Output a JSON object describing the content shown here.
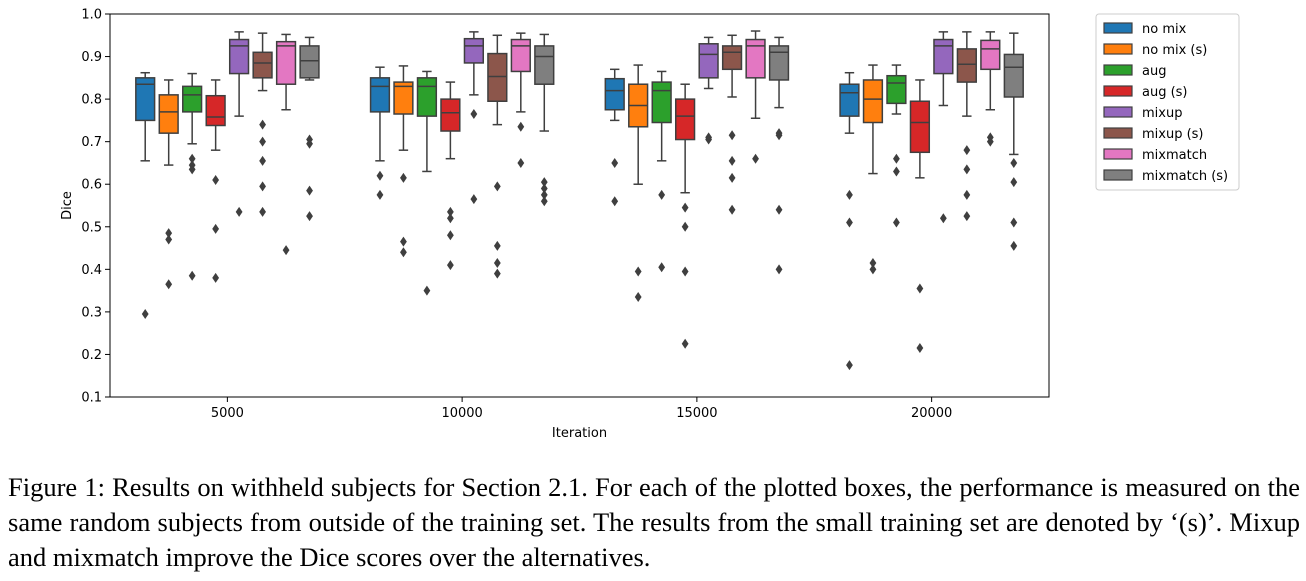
{
  "chart_data": {
    "type": "boxplot",
    "title": "",
    "xlabel": "Iteration",
    "ylabel": "Dice",
    "ylim": [
      0.1,
      1.0
    ],
    "yticks": [
      "0.1",
      "0.2",
      "0.3",
      "0.4",
      "0.5",
      "0.6",
      "0.7",
      "0.8",
      "0.9",
      "1.0"
    ],
    "categories": [
      "5000",
      "10000",
      "15000",
      "20000"
    ],
    "legend_position": "outside-top-right",
    "series": [
      {
        "name": "no mix",
        "color": "#1f77b4",
        "boxes": [
          {
            "q1": 0.75,
            "median": 0.835,
            "q3": 0.85,
            "whislo": 0.655,
            "whishi": 0.862,
            "fliers": [
              0.295
            ]
          },
          {
            "q1": 0.77,
            "median": 0.83,
            "q3": 0.85,
            "whislo": 0.655,
            "whishi": 0.875,
            "fliers": [
              0.62,
              0.575
            ]
          },
          {
            "q1": 0.775,
            "median": 0.82,
            "q3": 0.848,
            "whislo": 0.75,
            "whishi": 0.87,
            "fliers": [
              0.65,
              0.56
            ]
          },
          {
            "q1": 0.76,
            "median": 0.815,
            "q3": 0.835,
            "whislo": 0.72,
            "whishi": 0.862,
            "fliers": [
              0.575,
              0.51,
              0.175
            ]
          }
        ]
      },
      {
        "name": "no mix (s)",
        "color": "#ff7f0e",
        "boxes": [
          {
            "q1": 0.72,
            "median": 0.77,
            "q3": 0.81,
            "whislo": 0.645,
            "whishi": 0.845,
            "fliers": [
              0.485,
              0.47,
              0.365
            ]
          },
          {
            "q1": 0.765,
            "median": 0.83,
            "q3": 0.84,
            "whislo": 0.68,
            "whishi": 0.878,
            "fliers": [
              0.615,
              0.465,
              0.44
            ]
          },
          {
            "q1": 0.735,
            "median": 0.785,
            "q3": 0.835,
            "whislo": 0.6,
            "whishi": 0.88,
            "fliers": [
              0.395,
              0.335
            ]
          },
          {
            "q1": 0.745,
            "median": 0.8,
            "q3": 0.845,
            "whislo": 0.625,
            "whishi": 0.88,
            "fliers": [
              0.415,
              0.4
            ]
          }
        ]
      },
      {
        "name": "aug",
        "color": "#2ca02c",
        "boxes": [
          {
            "q1": 0.77,
            "median": 0.81,
            "q3": 0.83,
            "whislo": 0.695,
            "whishi": 0.86,
            "fliers": [
              0.66,
              0.645,
              0.635,
              0.385
            ]
          },
          {
            "q1": 0.76,
            "median": 0.83,
            "q3": 0.85,
            "whislo": 0.63,
            "whishi": 0.865,
            "fliers": [
              0.35
            ]
          },
          {
            "q1": 0.745,
            "median": 0.82,
            "q3": 0.84,
            "whislo": 0.655,
            "whishi": 0.865,
            "fliers": [
              0.575,
              0.405
            ]
          },
          {
            "q1": 0.79,
            "median": 0.838,
            "q3": 0.855,
            "whislo": 0.765,
            "whishi": 0.88,
            "fliers": [
              0.66,
              0.63,
              0.51
            ]
          }
        ]
      },
      {
        "name": "aug (s)",
        "color": "#d62728",
        "boxes": [
          {
            "q1": 0.738,
            "median": 0.758,
            "q3": 0.808,
            "whislo": 0.68,
            "whishi": 0.845,
            "fliers": [
              0.61,
              0.495,
              0.38
            ]
          },
          {
            "q1": 0.725,
            "median": 0.768,
            "q3": 0.8,
            "whislo": 0.66,
            "whishi": 0.84,
            "fliers": [
              0.535,
              0.52,
              0.48,
              0.41
            ]
          },
          {
            "q1": 0.705,
            "median": 0.76,
            "q3": 0.8,
            "whislo": 0.58,
            "whishi": 0.835,
            "fliers": [
              0.545,
              0.5,
              0.395,
              0.225
            ]
          },
          {
            "q1": 0.675,
            "median": 0.745,
            "q3": 0.795,
            "whislo": 0.615,
            "whishi": 0.845,
            "fliers": [
              0.355,
              0.215
            ]
          }
        ]
      },
      {
        "name": "mixup",
        "color": "#9467bd",
        "boxes": [
          {
            "q1": 0.86,
            "median": 0.925,
            "q3": 0.94,
            "whislo": 0.76,
            "whishi": 0.958,
            "fliers": [
              0.535
            ]
          },
          {
            "q1": 0.885,
            "median": 0.925,
            "q3": 0.942,
            "whislo": 0.81,
            "whishi": 0.958,
            "fliers": [
              0.765,
              0.565
            ]
          },
          {
            "q1": 0.85,
            "median": 0.905,
            "q3": 0.93,
            "whislo": 0.825,
            "whishi": 0.945,
            "fliers": [
              0.71,
              0.705
            ]
          },
          {
            "q1": 0.86,
            "median": 0.925,
            "q3": 0.94,
            "whislo": 0.785,
            "whishi": 0.958,
            "fliers": [
              0.52
            ]
          }
        ]
      },
      {
        "name": "mixup (s)",
        "color": "#8c564b",
        "boxes": [
          {
            "q1": 0.85,
            "median": 0.885,
            "q3": 0.91,
            "whislo": 0.82,
            "whishi": 0.955,
            "fliers": [
              0.74,
              0.7,
              0.655,
              0.595,
              0.535
            ]
          },
          {
            "q1": 0.795,
            "median": 0.853,
            "q3": 0.907,
            "whislo": 0.74,
            "whishi": 0.95,
            "fliers": [
              0.595,
              0.455,
              0.415,
              0.39
            ]
          },
          {
            "q1": 0.87,
            "median": 0.91,
            "q3": 0.925,
            "whislo": 0.805,
            "whishi": 0.95,
            "fliers": [
              0.715,
              0.655,
              0.615,
              0.54
            ]
          },
          {
            "q1": 0.84,
            "median": 0.882,
            "q3": 0.918,
            "whislo": 0.76,
            "whishi": 0.958,
            "fliers": [
              0.68,
              0.635,
              0.575,
              0.525
            ]
          }
        ]
      },
      {
        "name": "mixmatch",
        "color": "#e377c2",
        "boxes": [
          {
            "q1": 0.835,
            "median": 0.925,
            "q3": 0.935,
            "whislo": 0.775,
            "whishi": 0.952,
            "fliers": [
              0.445
            ]
          },
          {
            "q1": 0.865,
            "median": 0.925,
            "q3": 0.94,
            "whislo": 0.77,
            "whishi": 0.955,
            "fliers": [
              0.735,
              0.65
            ]
          },
          {
            "q1": 0.85,
            "median": 0.925,
            "q3": 0.94,
            "whislo": 0.755,
            "whishi": 0.96,
            "fliers": [
              0.66
            ]
          },
          {
            "q1": 0.87,
            "median": 0.918,
            "q3": 0.938,
            "whislo": 0.775,
            "whishi": 0.958,
            "fliers": [
              0.71,
              0.7
            ]
          }
        ]
      },
      {
        "name": "mixmatch (s)",
        "color": "#7f7f7f",
        "boxes": [
          {
            "q1": 0.85,
            "median": 0.89,
            "q3": 0.925,
            "whislo": 0.845,
            "whishi": 0.945,
            "fliers": [
              0.705,
              0.695,
              0.585,
              0.525
            ]
          },
          {
            "q1": 0.835,
            "median": 0.9,
            "q3": 0.925,
            "whislo": 0.725,
            "whishi": 0.952,
            "fliers": [
              0.605,
              0.59,
              0.575,
              0.56
            ]
          },
          {
            "q1": 0.845,
            "median": 0.91,
            "q3": 0.925,
            "whislo": 0.78,
            "whishi": 0.945,
            "fliers": [
              0.72,
              0.715,
              0.54,
              0.4
            ]
          },
          {
            "q1": 0.805,
            "median": 0.875,
            "q3": 0.905,
            "whislo": 0.67,
            "whishi": 0.955,
            "fliers": [
              0.65,
              0.605,
              0.51,
              0.455
            ]
          }
        ]
      }
    ]
  },
  "caption": "Figure 1: Results on withheld subjects for Section 2.1. For each of the plotted boxes, the performance is measured on the same random subjects from outside of the training set. The results from the small training set are denoted by ‘(s)’. Mixup and mixmatch improve the Dice scores over the alternatives."
}
